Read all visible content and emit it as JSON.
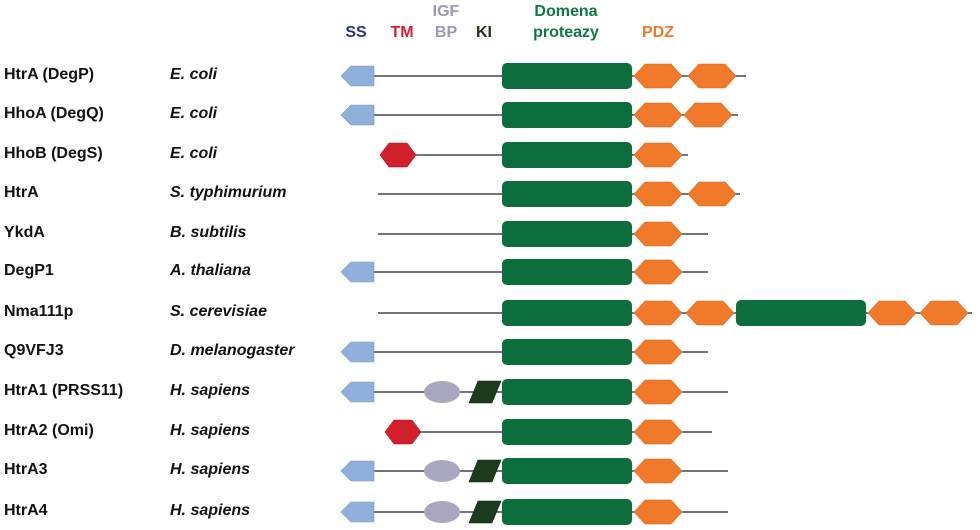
{
  "legend": [
    {
      "key": "ss",
      "lines": [
        "SS"
      ],
      "color": "#27338a"
    },
    {
      "key": "tm",
      "lines": [
        "TM"
      ],
      "color": "#d9202e"
    },
    {
      "key": "igf",
      "lines": [
        "IGF",
        "BP"
      ],
      "color": "#9a98b5"
    },
    {
      "key": "ki",
      "lines": [
        "KI"
      ],
      "color": "#1c3318"
    },
    {
      "key": "prot",
      "lines": [
        "Domena",
        "proteazy"
      ],
      "color": "#0b7a42"
    },
    {
      "key": "pdz",
      "lines": [
        "PDZ"
      ],
      "color": "#f0782a"
    }
  ],
  "colors": {
    "ss": "#8fb0da",
    "tm": "#d21f2c",
    "igf": "#a9a7c0",
    "ki": "#1d3c1d",
    "prot": "#0b6e3c",
    "pdz": "#f07a2a",
    "line": "#222222"
  },
  "proteins": [
    {
      "name": "HtrA  (DegP)",
      "organism": "E. coli",
      "domains": [
        "ss",
        "prot",
        "pdz",
        "pdz"
      ]
    },
    {
      "name": "HhoA (DegQ)",
      "organism": "E. coli",
      "domains": [
        "ss",
        "prot",
        "pdz",
        "pdz"
      ]
    },
    {
      "name": "HhoB (DegS)",
      "organism": "E. coli",
      "domains": [
        "tm",
        "prot",
        "pdz"
      ]
    },
    {
      "name": "HtrA",
      "organism": "S. typhimurium",
      "domains": [
        "prot",
        "pdz",
        "pdz"
      ]
    },
    {
      "name": "YkdA",
      "organism": "B. subtilis",
      "domains": [
        "prot",
        "pdz"
      ]
    },
    {
      "name": "DegP1",
      "organism": "A. thaliana",
      "domains": [
        "ss",
        "prot",
        "pdz"
      ]
    },
    {
      "name": "Nma111p",
      "organism": "S. cerevisiae",
      "domains": [
        "prot",
        "pdz",
        "pdz",
        "prot",
        "pdz",
        "pdz"
      ]
    },
    {
      "name": "Q9VFJ3",
      "organism": "D. melanogaster",
      "domains": [
        "ss",
        "prot",
        "pdz"
      ]
    },
    {
      "name": "HtrA1 (PRSS11)",
      "organism": "H. sapiens",
      "domains": [
        "ss",
        "igf",
        "ki",
        "prot",
        "pdz"
      ]
    },
    {
      "name": "HtrA2 (Omi)",
      "organism": "H. sapiens",
      "domains": [
        "tm",
        "prot",
        "pdz"
      ]
    },
    {
      "name": "HtrA3",
      "organism": "H. sapiens",
      "domains": [
        "ss",
        "igf",
        "ki",
        "prot",
        "pdz"
      ]
    },
    {
      "name": "HtrA4",
      "organism": "H. sapiens",
      "domains": [
        "ss",
        "igf",
        "ki",
        "prot",
        "pdz"
      ]
    }
  ]
}
